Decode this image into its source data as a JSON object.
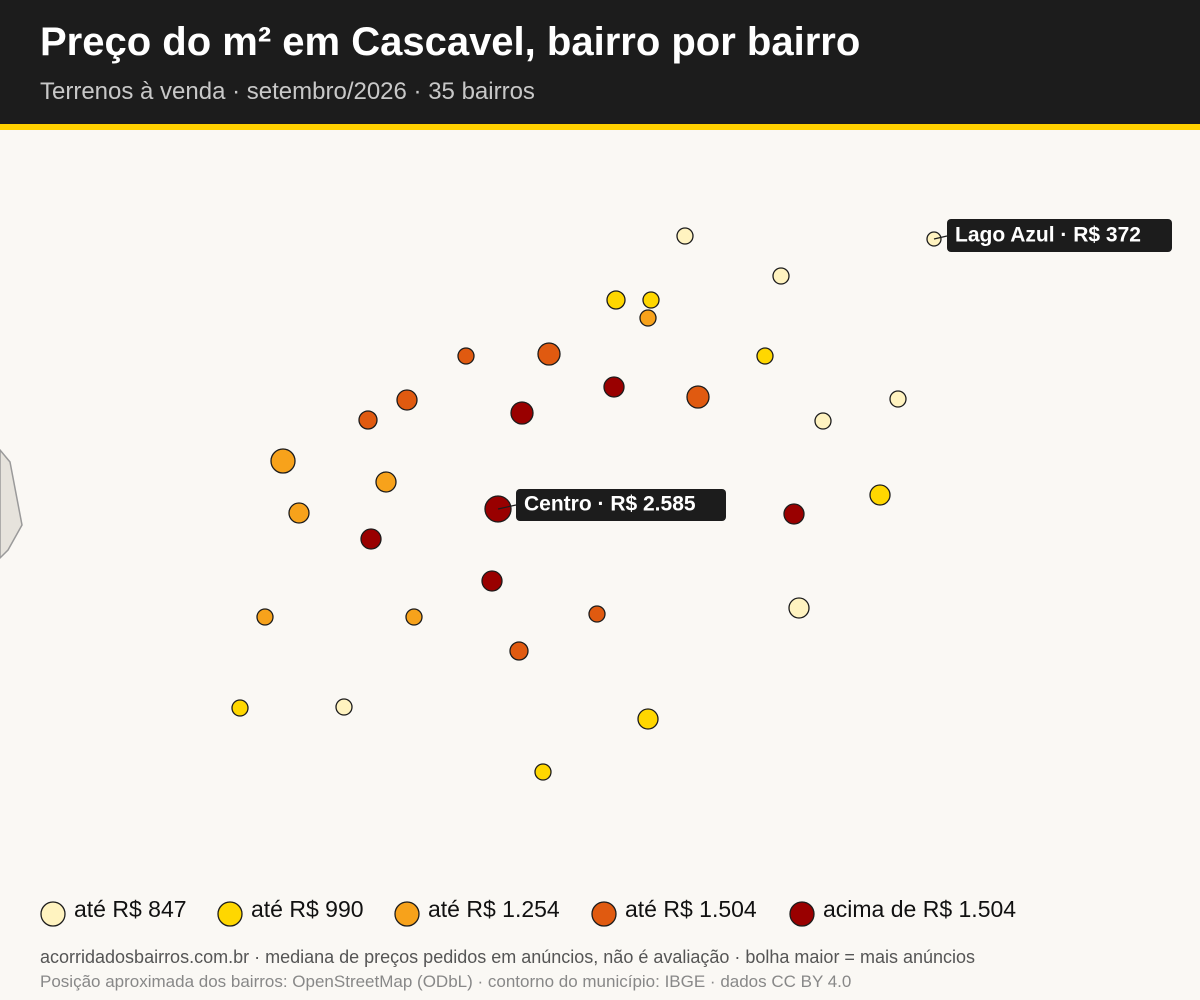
{
  "header": {
    "title": "Preço do m² em Cascavel, bairro por bairro",
    "subtitle": "Terrenos à venda · setembro/2026 · 35 bairros"
  },
  "annotations": [
    "Centro · R$ 2.585",
    "Lago Azul · R$ 372"
  ],
  "legend": [
    {
      "label": "até R$ 847",
      "color": "#fff3c0"
    },
    {
      "label": "até R$ 990",
      "color": "#ffd700"
    },
    {
      "label": "até R$ 1.254",
      "color": "#f7a21b"
    },
    {
      "label": "até R$ 1.504",
      "color": "#e05a10"
    },
    {
      "label": "acima de R$ 1.504",
      "color": "#990000"
    }
  ],
  "footer": {
    "source": "acorridadosbairros.com.br · mediana de preços pedidos em anúncios, não é avaliação · bolha maior = mais anúncios",
    "credits": "Posição aproximada dos bairros: OpenStreetMap (ODbL) · contorno do município: IBGE · dados CC BY 4.0"
  }
}
